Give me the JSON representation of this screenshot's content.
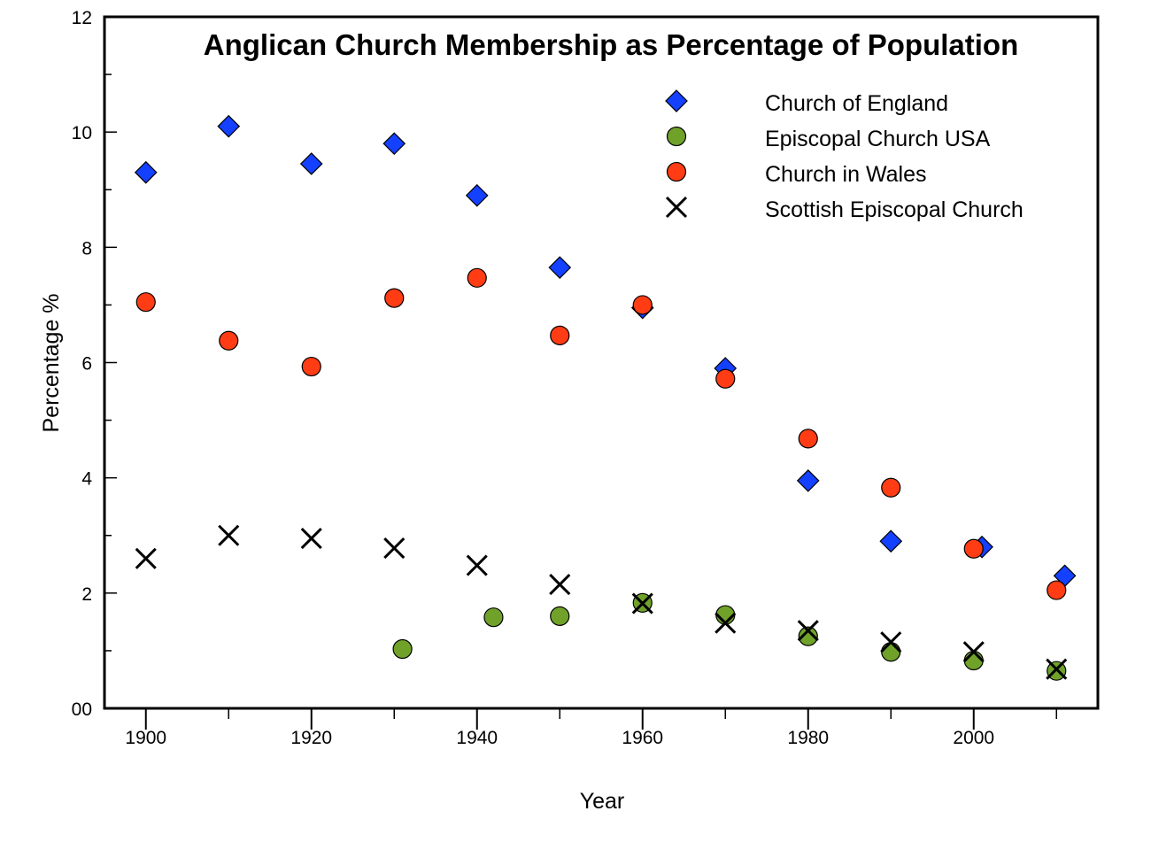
{
  "chart_data": {
    "type": "scatter",
    "title": "Anglican Church Membership as Percentage of Population",
    "xlabel": "Year",
    "ylabel": "Percentage %",
    "xlim": [
      1895,
      2015
    ],
    "ylim": [
      0,
      12
    ],
    "x_ticks": [
      1900,
      1920,
      1940,
      1960,
      1980,
      2000
    ],
    "y_ticks": [
      0,
      2,
      4,
      6,
      8,
      10,
      12
    ],
    "y_zero_label": "00",
    "grid": false,
    "legend_position": "top-right",
    "series": [
      {
        "name": "Church of England",
        "marker": "diamond",
        "color": "#1440ff",
        "points": [
          [
            1900,
            9.3
          ],
          [
            1910,
            10.1
          ],
          [
            1920,
            9.45
          ],
          [
            1930,
            9.8
          ],
          [
            1940,
            8.9
          ],
          [
            1950,
            7.65
          ],
          [
            1960,
            6.95
          ],
          [
            1970,
            5.9
          ],
          [
            1980,
            3.95
          ],
          [
            1990,
            2.9
          ],
          [
            2001,
            2.8
          ],
          [
            2011,
            2.3
          ]
        ]
      },
      {
        "name": "Episcopal Church USA",
        "marker": "circle",
        "color": "#70a22a",
        "points": [
          [
            1931,
            1.03
          ],
          [
            1942,
            1.58
          ],
          [
            1950,
            1.6
          ],
          [
            1960,
            1.83
          ],
          [
            1970,
            1.62
          ],
          [
            1980,
            1.25
          ],
          [
            1990,
            0.98
          ],
          [
            2000,
            0.83
          ],
          [
            2010,
            0.65
          ]
        ]
      },
      {
        "name": "Church in Wales",
        "marker": "circle",
        "color": "#ff3c14",
        "points": [
          [
            1900,
            7.05
          ],
          [
            1910,
            6.38
          ],
          [
            1920,
            5.93
          ],
          [
            1930,
            7.12
          ],
          [
            1940,
            7.47
          ],
          [
            1950,
            6.47
          ],
          [
            1960,
            7.0
          ],
          [
            1970,
            5.72
          ],
          [
            1980,
            4.68
          ],
          [
            1990,
            3.83
          ],
          [
            2000,
            2.77
          ],
          [
            2010,
            2.05
          ]
        ]
      },
      {
        "name": "Scottish Episcopal Church",
        "marker": "cross",
        "color": "#000000",
        "points": [
          [
            1900,
            2.6
          ],
          [
            1910,
            3.0
          ],
          [
            1920,
            2.95
          ],
          [
            1930,
            2.78
          ],
          [
            1940,
            2.48
          ],
          [
            1950,
            2.15
          ],
          [
            1960,
            1.82
          ],
          [
            1970,
            1.48
          ],
          [
            1980,
            1.35
          ],
          [
            1990,
            1.15
          ],
          [
            2000,
            0.98
          ],
          [
            2010,
            0.68
          ]
        ]
      }
    ]
  }
}
